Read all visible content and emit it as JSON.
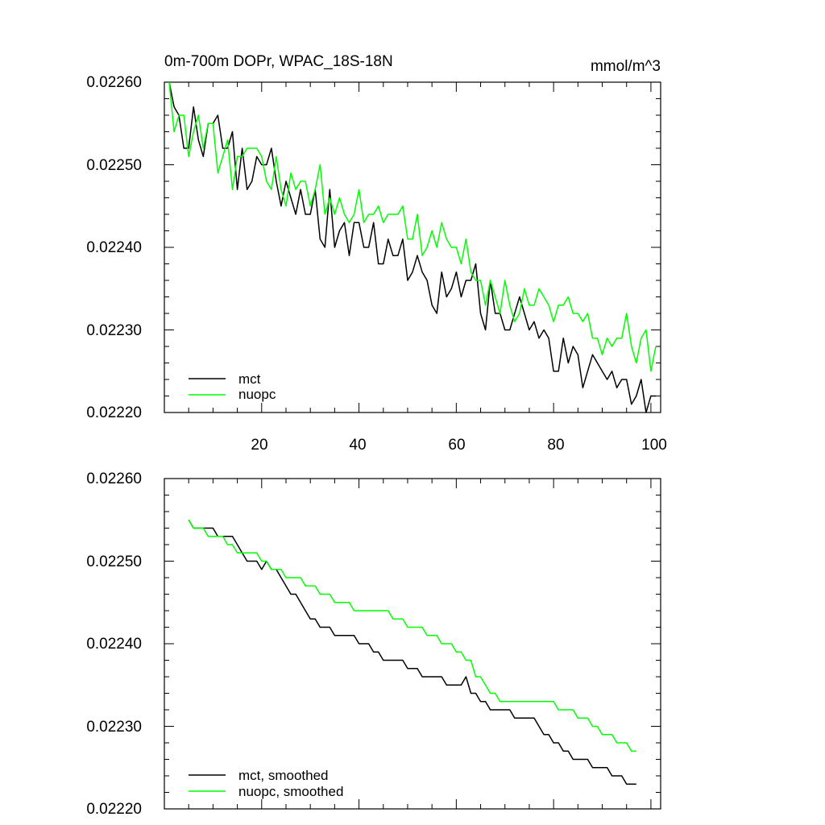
{
  "chart_data": [
    {
      "type": "line",
      "title": "0m-700m DOPr, WPAC_18S-18N",
      "units": "mmol/m^3",
      "x": [
        1,
        2,
        3,
        4,
        5,
        6,
        7,
        8,
        9,
        10,
        11,
        12,
        13,
        14,
        15,
        16,
        17,
        18,
        19,
        20,
        21,
        22,
        23,
        24,
        25,
        26,
        27,
        28,
        29,
        30,
        31,
        32,
        33,
        34,
        35,
        36,
        37,
        38,
        39,
        40,
        41,
        42,
        43,
        44,
        45,
        46,
        47,
        48,
        49,
        50,
        51,
        52,
        53,
        54,
        55,
        56,
        57,
        58,
        59,
        60,
        61,
        62,
        63,
        64,
        65,
        66,
        67,
        68,
        69,
        70,
        71,
        72,
        73,
        74,
        75,
        76,
        77,
        78,
        79,
        80,
        81,
        82,
        83,
        84,
        85,
        86,
        87,
        88,
        89,
        90,
        91,
        92,
        93,
        94,
        95,
        96,
        97,
        98,
        99,
        100,
        101
      ],
      "xlim": [
        0,
        102
      ],
      "ylim": [
        0.0222,
        0.0226
      ],
      "yticks": [
        "0.02220",
        "0.02230",
        "0.02240",
        "0.02250",
        "0.02260"
      ],
      "xticks": [
        "20",
        "40",
        "60",
        "80",
        "100"
      ],
      "series": [
        {
          "name": "mct",
          "color": "#000000",
          "values": [
            0.0226,
            0.02257,
            0.02256,
            0.02252,
            0.02252,
            0.02257,
            0.02253,
            0.02251,
            0.02255,
            0.02255,
            0.02256,
            0.02252,
            0.02252,
            0.02254,
            0.02247,
            0.02252,
            0.02247,
            0.02248,
            0.02251,
            0.0225,
            0.0225,
            0.02252,
            0.02248,
            0.02245,
            0.02248,
            0.02246,
            0.02244,
            0.02247,
            0.02244,
            0.02244,
            0.02247,
            0.02241,
            0.0224,
            0.02247,
            0.0224,
            0.02242,
            0.02243,
            0.02239,
            0.02243,
            0.02243,
            0.0224,
            0.0224,
            0.02243,
            0.02238,
            0.02238,
            0.02241,
            0.02239,
            0.02239,
            0.02241,
            0.02236,
            0.02237,
            0.02239,
            0.02237,
            0.02236,
            0.02233,
            0.02232,
            0.02237,
            0.02234,
            0.02235,
            0.02237,
            0.02234,
            0.02236,
            0.02236,
            0.02238,
            0.02232,
            0.0223,
            0.02236,
            0.02232,
            0.02232,
            0.0223,
            0.0223,
            0.02232,
            0.02234,
            0.02232,
            0.0223,
            0.02231,
            0.02229,
            0.0223,
            0.02229,
            0.02225,
            0.02225,
            0.02229,
            0.02226,
            0.02228,
            0.02227,
            0.02223,
            0.02225,
            0.02227,
            0.02226,
            0.02225,
            0.02224,
            0.02225,
            0.02223,
            0.02224,
            0.02224,
            0.02221,
            0.02222,
            0.02224,
            0.0222,
            0.02222,
            0.02222
          ]
        },
        {
          "name": "nuopc",
          "color": "#00ff00",
          "values": [
            0.0226,
            0.02254,
            0.02256,
            0.02256,
            0.02251,
            0.02254,
            0.02256,
            0.02252,
            0.02255,
            0.02255,
            0.02249,
            0.02251,
            0.02253,
            0.02247,
            0.02251,
            0.02251,
            0.02252,
            0.02252,
            0.02252,
            0.02251,
            0.02248,
            0.02247,
            0.02251,
            0.02247,
            0.02245,
            0.02249,
            0.02247,
            0.02248,
            0.02248,
            0.02245,
            0.02247,
            0.0225,
            0.02244,
            0.02246,
            0.02244,
            0.02246,
            0.02244,
            0.02243,
            0.02244,
            0.02247,
            0.02243,
            0.02244,
            0.02244,
            0.02245,
            0.02243,
            0.02244,
            0.02244,
            0.02244,
            0.02245,
            0.02241,
            0.02241,
            0.02244,
            0.02239,
            0.0224,
            0.02242,
            0.0224,
            0.02243,
            0.02241,
            0.0224,
            0.0224,
            0.02238,
            0.02241,
            0.02237,
            0.02236,
            0.02236,
            0.02233,
            0.02236,
            0.02234,
            0.02232,
            0.02236,
            0.02233,
            0.02231,
            0.02232,
            0.02235,
            0.02233,
            0.02233,
            0.02235,
            0.02234,
            0.02233,
            0.02231,
            0.02233,
            0.02233,
            0.02234,
            0.02232,
            0.02232,
            0.02231,
            0.02232,
            0.02229,
            0.02229,
            0.02227,
            0.02229,
            0.02228,
            0.02229,
            0.02229,
            0.02232,
            0.02228,
            0.02226,
            0.02229,
            0.0223,
            0.02225,
            0.02228
          ]
        }
      ],
      "legend": [
        {
          "name": "mct",
          "color": "#000000"
        },
        {
          "name": "nuopc",
          "color": "#00ff00"
        }
      ]
    },
    {
      "type": "line",
      "title": "",
      "units": "",
      "x": [
        5,
        6,
        7,
        8,
        9,
        10,
        11,
        12,
        13,
        14,
        15,
        16,
        17,
        18,
        19,
        20,
        21,
        22,
        23,
        24,
        25,
        26,
        27,
        28,
        29,
        30,
        31,
        32,
        33,
        34,
        35,
        36,
        37,
        38,
        39,
        40,
        41,
        42,
        43,
        44,
        45,
        46,
        47,
        48,
        49,
        50,
        51,
        52,
        53,
        54,
        55,
        56,
        57,
        58,
        59,
        60,
        61,
        62,
        63,
        64,
        65,
        66,
        67,
        68,
        69,
        70,
        71,
        72,
        73,
        74,
        75,
        76,
        77,
        78,
        79,
        80,
        81,
        82,
        83,
        84,
        85,
        86,
        87,
        88,
        89,
        90,
        91,
        92,
        93,
        94,
        95,
        96,
        97
      ],
      "xlim": [
        0,
        102
      ],
      "ylim": [
        0.0222,
        0.0226
      ],
      "yticks": [
        "0.02220",
        "0.02230",
        "0.02240",
        "0.02250",
        "0.02260"
      ],
      "xticks": [],
      "series": [
        {
          "name": "mct, smoothed",
          "color": "#000000",
          "values": [
            0.02255,
            0.02254,
            0.02254,
            0.02254,
            0.02254,
            0.02254,
            0.02253,
            0.02253,
            0.02253,
            0.02253,
            0.02252,
            0.02251,
            0.0225,
            0.0225,
            0.0225,
            0.02249,
            0.0225,
            0.02249,
            0.02249,
            0.02248,
            0.02247,
            0.02246,
            0.02246,
            0.02245,
            0.02244,
            0.02243,
            0.02243,
            0.02242,
            0.02242,
            0.02242,
            0.02241,
            0.02241,
            0.02241,
            0.02241,
            0.02241,
            0.0224,
            0.0224,
            0.0224,
            0.02239,
            0.02239,
            0.02238,
            0.02238,
            0.02238,
            0.02238,
            0.02238,
            0.02237,
            0.02237,
            0.02237,
            0.02236,
            0.02236,
            0.02236,
            0.02236,
            0.02236,
            0.02235,
            0.02235,
            0.02235,
            0.02235,
            0.02236,
            0.02234,
            0.02234,
            0.02233,
            0.02233,
            0.02232,
            0.02232,
            0.02232,
            0.02232,
            0.02232,
            0.02231,
            0.02231,
            0.02231,
            0.02231,
            0.02231,
            0.0223,
            0.02229,
            0.02229,
            0.02228,
            0.02228,
            0.02227,
            0.02227,
            0.02226,
            0.02226,
            0.02226,
            0.02226,
            0.02225,
            0.02225,
            0.02225,
            0.02225,
            0.02224,
            0.02224,
            0.02224,
            0.02223,
            0.02223,
            0.02223
          ]
        },
        {
          "name": "nuopc, smoothed",
          "color": "#00ff00",
          "values": [
            0.02255,
            0.02254,
            0.02254,
            0.02254,
            0.02253,
            0.02253,
            0.02253,
            0.02253,
            0.02252,
            0.02252,
            0.02251,
            0.02251,
            0.02251,
            0.02251,
            0.02251,
            0.0225,
            0.0225,
            0.02249,
            0.02249,
            0.02249,
            0.02248,
            0.02248,
            0.02248,
            0.02248,
            0.02247,
            0.02247,
            0.02247,
            0.02246,
            0.02246,
            0.02246,
            0.02245,
            0.02245,
            0.02245,
            0.02245,
            0.02244,
            0.02244,
            0.02244,
            0.02244,
            0.02244,
            0.02244,
            0.02244,
            0.02244,
            0.02243,
            0.02243,
            0.02243,
            0.02242,
            0.02242,
            0.02242,
            0.02242,
            0.02241,
            0.02241,
            0.02241,
            0.0224,
            0.0224,
            0.0224,
            0.02239,
            0.02239,
            0.02238,
            0.02238,
            0.02236,
            0.02236,
            0.02235,
            0.02234,
            0.02234,
            0.02233,
            0.02233,
            0.02233,
            0.02233,
            0.02233,
            0.02233,
            0.02233,
            0.02233,
            0.02233,
            0.02233,
            0.02233,
            0.02233,
            0.02232,
            0.02232,
            0.02232,
            0.02232,
            0.02231,
            0.02231,
            0.02231,
            0.0223,
            0.0223,
            0.02229,
            0.02229,
            0.02229,
            0.02228,
            0.02228,
            0.02228,
            0.02227,
            0.02227
          ]
        }
      ],
      "legend": [
        {
          "name": "mct, smoothed",
          "color": "#000000"
        },
        {
          "name": "nuopc, smoothed",
          "color": "#00ff00"
        }
      ]
    }
  ]
}
